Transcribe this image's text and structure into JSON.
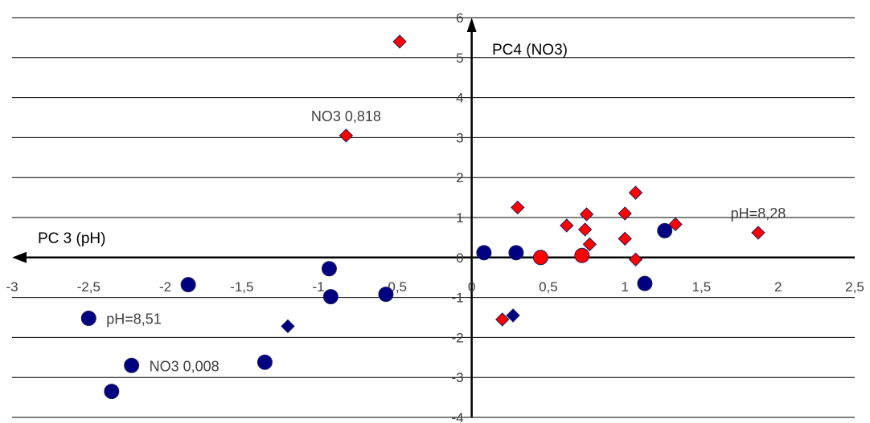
{
  "chart_data": {
    "type": "scatter",
    "xlabel": "PC 3 (pH)",
    "ylabel": "PC4 (NO3)",
    "xlim": [
      -3,
      2.5
    ],
    "ylim": [
      -4,
      6
    ],
    "x_ticks": [
      "-3",
      "-2,5",
      "-2",
      "-1,5",
      "-1",
      "-0,5",
      "0",
      "0,5",
      "1",
      "1,5",
      "2",
      "2,5"
    ],
    "y_ticks": [
      "6",
      "5",
      "4",
      "3",
      "2",
      "1",
      "0",
      "-1",
      "-2",
      "-3",
      "-4"
    ],
    "grid": "horizontal",
    "legend": "none",
    "series": [
      {
        "marker": "diamond",
        "color": "#ff0000",
        "points": [
          {
            "x": -0.47,
            "y": 5.4
          },
          {
            "x": -0.82,
            "y": 3.05
          },
          {
            "x": 0.3,
            "y": 1.25
          },
          {
            "x": 0.62,
            "y": 0.8
          },
          {
            "x": 0.75,
            "y": 1.08
          },
          {
            "x": 0.74,
            "y": 0.7
          },
          {
            "x": 0.77,
            "y": 0.33
          },
          {
            "x": 1.0,
            "y": 1.1
          },
          {
            "x": 1.07,
            "y": 1.62
          },
          {
            "x": 1.0,
            "y": 0.47
          },
          {
            "x": 1.07,
            "y": -0.05
          },
          {
            "x": 1.33,
            "y": 0.83
          },
          {
            "x": 1.87,
            "y": 0.62
          },
          {
            "x": 0.2,
            "y": -1.55
          }
        ]
      },
      {
        "marker": "circle",
        "color": "#ff0000",
        "points": [
          {
            "x": 0.45,
            "y": 0.0
          },
          {
            "x": 0.72,
            "y": 0.05
          }
        ]
      },
      {
        "marker": "circle",
        "color": "#000080",
        "points": [
          {
            "x": -1.85,
            "y": -0.68
          },
          {
            "x": -0.93,
            "y": -0.28
          },
          {
            "x": -0.92,
            "y": -0.98
          },
          {
            "x": -0.56,
            "y": -0.92
          },
          {
            "x": -2.5,
            "y": -1.52
          },
          {
            "x": -2.22,
            "y": -2.7
          },
          {
            "x": -2.35,
            "y": -3.35
          },
          {
            "x": -1.35,
            "y": -2.62
          },
          {
            "x": 0.08,
            "y": 0.12
          },
          {
            "x": 0.29,
            "y": 0.12
          },
          {
            "x": 1.13,
            "y": -0.65
          },
          {
            "x": 1.26,
            "y": 0.67
          }
        ]
      },
      {
        "marker": "diamond",
        "color": "#000080",
        "points": [
          {
            "x": -1.2,
            "y": -1.72
          },
          {
            "x": 0.27,
            "y": -1.45
          }
        ]
      }
    ],
    "annotations": [
      {
        "text": "NO3 0,818",
        "x": -0.82,
        "y": 3.05,
        "anchor": "above"
      },
      {
        "text": "pH=8,28",
        "x": 1.87,
        "y": 0.62,
        "anchor": "above"
      },
      {
        "text": "pH=8,51",
        "x": -2.5,
        "y": -1.52,
        "anchor": "right"
      },
      {
        "text": "NO3 0,008",
        "x": -2.22,
        "y": -2.7,
        "anchor": "right"
      }
    ]
  }
}
